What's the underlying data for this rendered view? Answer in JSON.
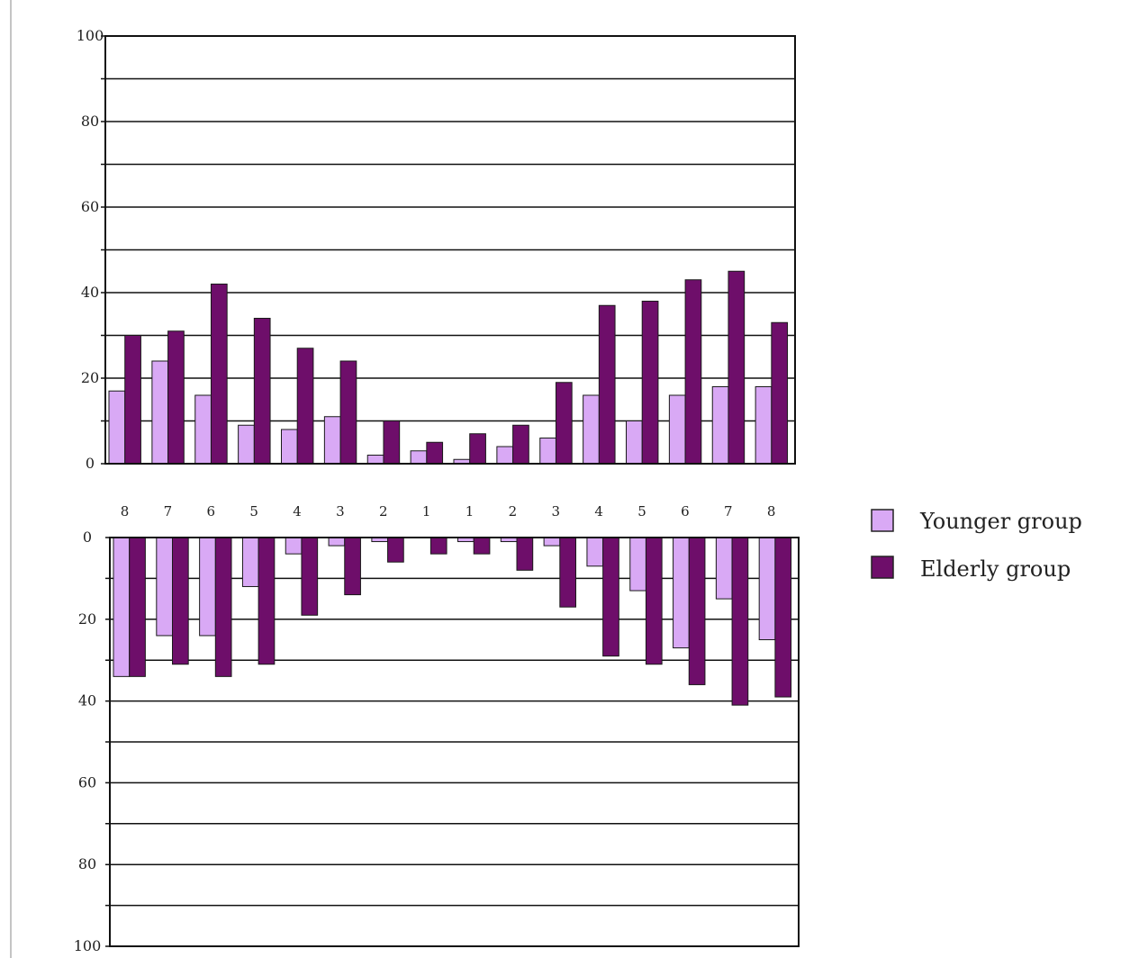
{
  "chart_data": [
    {
      "type": "bar",
      "title": "",
      "xlabel": "",
      "ylabel": "",
      "ylim": [
        0,
        100
      ],
      "yticks": [
        "0",
        "20",
        "40",
        "60",
        "80",
        "100"
      ],
      "categories": [
        "8",
        "7",
        "6",
        "5",
        "4",
        "3",
        "2",
        "1",
        "1",
        "2",
        "3",
        "4",
        "5",
        "6",
        "7",
        "8"
      ],
      "series": [
        {
          "name": "Younger group",
          "color": "#d9a9f5",
          "values": [
            17,
            24,
            16,
            9,
            8,
            11,
            2,
            3,
            1,
            4,
            6,
            16,
            10,
            16,
            18,
            18
          ]
        },
        {
          "name": "Elderly group",
          "color": "#6e0e6a",
          "values": [
            30,
            31,
            42,
            34,
            27,
            24,
            10,
            5,
            7,
            9,
            19,
            37,
            38,
            43,
            45,
            33
          ]
        }
      ],
      "grid": true,
      "legend": "right"
    },
    {
      "type": "bar",
      "title": "",
      "xlabel": "",
      "ylabel": "",
      "ylim": [
        0,
        100
      ],
      "inverted": true,
      "yticks": [
        "0",
        "20",
        "40",
        "60",
        "80",
        "100"
      ],
      "categories": [
        "8",
        "7",
        "6",
        "5",
        "4",
        "3",
        "2",
        "1",
        "1",
        "2",
        "3",
        "4",
        "5",
        "6",
        "7",
        "8"
      ],
      "series": [
        {
          "name": "Younger group",
          "color": "#d9a9f5",
          "values": [
            34,
            24,
            24,
            12,
            4,
            2,
            1,
            0,
            1,
            1,
            2,
            7,
            13,
            27,
            15,
            25
          ]
        },
        {
          "name": "Elderly group",
          "color": "#6e0e6a",
          "values": [
            34,
            31,
            34,
            31,
            19,
            14,
            6,
            4,
            4,
            8,
            17,
            29,
            31,
            36,
            41,
            39
          ]
        }
      ],
      "grid": true,
      "legend": "right"
    }
  ],
  "legend": {
    "items": [
      {
        "label": "Younger group",
        "color": "#d9a9f5"
      },
      {
        "label": "Elderly group",
        "color": "#6e0e6a"
      }
    ]
  }
}
